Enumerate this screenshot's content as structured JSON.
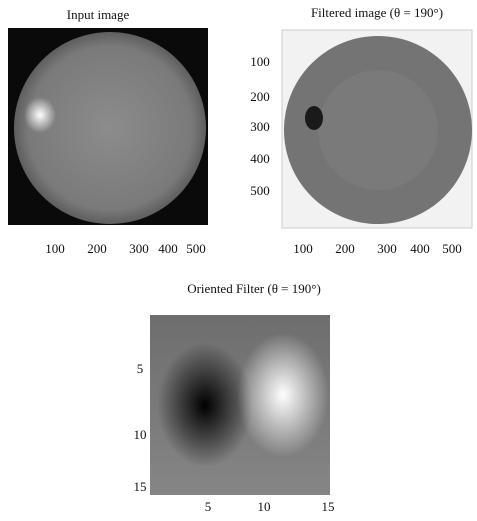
{
  "panels": [
    {
      "title": "Input image",
      "xticks": [
        "100",
        "200",
        "300",
        "400",
        "500"
      ]
    },
    {
      "title": "Filtered image (θ = 190°)",
      "xticks": [
        "100",
        "200",
        "300",
        "400",
        "500"
      ],
      "yticks": [
        "100",
        "200",
        "300",
        "400",
        "500"
      ]
    },
    {
      "title": "Oriented Filter (θ = 190°)",
      "xticks": [
        "5",
        "10",
        "15"
      ],
      "yticks": [
        "5",
        "10",
        "15"
      ]
    }
  ]
}
